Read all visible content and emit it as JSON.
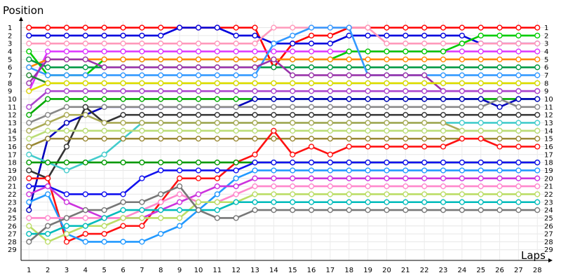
{
  "chart_data": {
    "type": "line",
    "xlabel": "Laps",
    "ylabel": "Position",
    "x": [
      1,
      2,
      3,
      4,
      5,
      6,
      7,
      8,
      9,
      10,
      11,
      12,
      13,
      14,
      15,
      16,
      17,
      18,
      19,
      20,
      21,
      22,
      23,
      24,
      25,
      26,
      27,
      28
    ],
    "xlim": [
      0,
      29
    ],
    "ylim": [
      1,
      29
    ],
    "y_inverted": true,
    "y_ticks": [
      1,
      2,
      3,
      4,
      5,
      6,
      7,
      8,
      9,
      10,
      11,
      12,
      13,
      14,
      15,
      16,
      17,
      18,
      19,
      20,
      21,
      22,
      23,
      24,
      25,
      26,
      27,
      28,
      29
    ],
    "grid": true,
    "legend": "none",
    "series": [
      {
        "color": "#ff0000",
        "values": [
          1,
          1,
          1,
          1,
          1,
          1,
          1,
          1,
          1,
          1,
          1,
          1,
          1,
          6,
          3,
          2,
          2,
          1,
          1,
          1,
          1,
          1,
          1,
          1,
          1,
          1,
          1,
          1
        ]
      },
      {
        "color": "#0000dd",
        "values": [
          2,
          2,
          2,
          2,
          2,
          2,
          2,
          2,
          1,
          1,
          1,
          2,
          2,
          3,
          3,
          3,
          3,
          2,
          2,
          2,
          2,
          2,
          2,
          2,
          3,
          3,
          3,
          3
        ]
      },
      {
        "color": "#ff99bb",
        "values": [
          3,
          3,
          3,
          3,
          3,
          3,
          3,
          3,
          3,
          3,
          3,
          3,
          3,
          1,
          1,
          1,
          1,
          1,
          1,
          3,
          3,
          3,
          3,
          3,
          3,
          3,
          3,
          3
        ]
      },
      {
        "color": "#dd33ff",
        "values": [
          9,
          4,
          4,
          4,
          4,
          4,
          4,
          4,
          4,
          4,
          4,
          4,
          4,
          4,
          4,
          4,
          4,
          4,
          4,
          4,
          4,
          4,
          4,
          4,
          4,
          4,
          4,
          4
        ]
      },
      {
        "color": "#00cc00",
        "values": [
          4,
          7,
          7,
          7,
          5,
          5,
          5,
          5,
          5,
          5,
          5,
          5,
          5,
          5,
          5,
          5,
          5,
          4,
          4,
          4,
          4,
          4,
          4,
          3,
          2,
          2,
          2,
          2
        ]
      },
      {
        "color": "#ff8800",
        "values": [
          6,
          5,
          5,
          5,
          5,
          5,
          5,
          5,
          5,
          5,
          5,
          5,
          5,
          5,
          5,
          5,
          5,
          5,
          5,
          5,
          5,
          5,
          5,
          5,
          5,
          5,
          5,
          5
        ]
      },
      {
        "color": "#009944",
        "values": [
          5,
          6,
          6,
          6,
          6,
          6,
          6,
          6,
          6,
          6,
          6,
          6,
          6,
          6,
          6,
          6,
          6,
          6,
          6,
          6,
          6,
          6,
          6,
          6,
          6,
          6,
          6,
          6
        ]
      },
      {
        "color": "#3399ff",
        "values": [
          6,
          7,
          7,
          7,
          7,
          7,
          7,
          7,
          7,
          7,
          7,
          7,
          7,
          3,
          2,
          1,
          1,
          1,
          7,
          7,
          7,
          7,
          7,
          7,
          7,
          7,
          7,
          7
        ]
      },
      {
        "color": "#9933aa",
        "values": [
          8,
          5,
          5,
          5,
          6,
          6,
          6,
          6,
          6,
          6,
          6,
          6,
          6,
          5,
          7,
          7,
          7,
          7,
          7,
          7,
          7,
          7,
          9,
          9,
          9,
          9,
          9,
          9
        ]
      },
      {
        "color": "#228833",
        "values": [
          7,
          8,
          8,
          8,
          8,
          8,
          8,
          8,
          8,
          8,
          8,
          8,
          8,
          8,
          8,
          8,
          8,
          8,
          8,
          8,
          8,
          8,
          8,
          8,
          8,
          8,
          8,
          8
        ]
      },
      {
        "color": "#dddd00",
        "values": [
          9,
          8,
          8,
          8,
          8,
          8,
          8,
          8,
          8,
          8,
          8,
          8,
          8,
          8,
          8,
          8,
          8,
          8,
          8,
          8,
          8,
          8,
          8,
          8,
          8,
          8,
          8,
          8
        ]
      },
      {
        "color": "#aa44cc",
        "values": [
          11,
          9,
          9,
          9,
          9,
          9,
          9,
          9,
          9,
          9,
          9,
          9,
          9,
          9,
          9,
          9,
          9,
          9,
          9,
          9,
          9,
          9,
          9,
          9,
          9,
          9,
          9,
          9
        ]
      },
      {
        "color": "#00aa00",
        "values": [
          12,
          10,
          10,
          10,
          10,
          10,
          10,
          10,
          10,
          10,
          10,
          10,
          10,
          10,
          10,
          10,
          10,
          10,
          10,
          10,
          10,
          10,
          10,
          10,
          10,
          10,
          10,
          10
        ]
      },
      {
        "color": "#0000bb",
        "values": [
          24,
          15,
          13,
          12,
          11,
          11,
          11,
          11,
          11,
          11,
          11,
          11,
          10,
          10,
          10,
          10,
          10,
          10,
          10,
          10,
          10,
          10,
          10,
          10,
          10,
          11,
          10,
          10
        ]
      },
      {
        "color": "#888888",
        "values": [
          13,
          12,
          11,
          11,
          11,
          11,
          11,
          11,
          11,
          11,
          11,
          11,
          11,
          11,
          11,
          11,
          11,
          11,
          11,
          11,
          11,
          11,
          11,
          11,
          11,
          10,
          11,
          11
        ]
      },
      {
        "color": "#333333",
        "values": [
          19,
          20,
          16,
          11,
          13,
          12,
          12,
          12,
          12,
          12,
          12,
          12,
          12,
          12,
          12,
          12,
          12,
          12,
          12,
          12,
          12,
          12,
          12,
          12,
          12,
          12,
          12,
          12
        ]
      },
      {
        "color": "#44cccc",
        "values": [
          17,
          18,
          19,
          18,
          17,
          15,
          13,
          13,
          13,
          13,
          13,
          13,
          13,
          13,
          13,
          13,
          13,
          13,
          13,
          13,
          13,
          13,
          13,
          13,
          13,
          13,
          13,
          13
        ]
      },
      {
        "color": "#aaaa55",
        "values": [
          14,
          13,
          12,
          12,
          13,
          13,
          13,
          13,
          13,
          13,
          13,
          13,
          13,
          13,
          13,
          13,
          13,
          13,
          13,
          13,
          13,
          13,
          13,
          14,
          14,
          14,
          14,
          14
        ]
      },
      {
        "color": "#bbdd77",
        "values": [
          15,
          14,
          14,
          14,
          14,
          14,
          14,
          14,
          14,
          14,
          14,
          14,
          14,
          14,
          14,
          14,
          14,
          14,
          14,
          14,
          14,
          14,
          14,
          14,
          14,
          14,
          14,
          14
        ]
      },
      {
        "color": "#998833",
        "values": [
          16,
          15,
          15,
          15,
          15,
          15,
          15,
          15,
          15,
          15,
          15,
          15,
          15,
          15,
          15,
          15,
          15,
          15,
          15,
          15,
          15,
          15,
          15,
          15,
          15,
          15,
          15,
          15
        ]
      },
      {
        "color": "#ff1111",
        "values": [
          20,
          20,
          28,
          27,
          27,
          26,
          26,
          23,
          20,
          20,
          20,
          18,
          17,
          14,
          17,
          16,
          17,
          16,
          16,
          16,
          16,
          16,
          16,
          15,
          15,
          16,
          16,
          16
        ]
      },
      {
        "color": "#009900",
        "values": [
          18,
          18,
          18,
          18,
          18,
          18,
          18,
          18,
          18,
          18,
          18,
          18,
          18,
          18,
          18,
          18,
          18,
          18,
          18,
          18,
          18,
          18,
          18,
          18,
          18,
          18,
          18,
          18
        ]
      },
      {
        "color": "#1111ee",
        "values": [
          21,
          21,
          22,
          22,
          22,
          22,
          20,
          19,
          19,
          19,
          19,
          19,
          18,
          18,
          18,
          18,
          18,
          18,
          18,
          18,
          18,
          18,
          18,
          18,
          18,
          18,
          18,
          18
        ]
      },
      {
        "color": "#2299ff",
        "values": [
          23,
          22,
          27,
          28,
          28,
          28,
          28,
          27,
          26,
          24,
          22,
          20,
          19,
          19,
          19,
          19,
          19,
          19,
          19,
          19,
          19,
          19,
          19,
          19,
          19,
          19,
          19,
          19
        ]
      },
      {
        "color": "#cc33dd",
        "values": [
          22,
          21,
          23,
          24,
          25,
          25,
          25,
          24,
          23,
          22,
          21,
          21,
          20,
          20,
          20,
          20,
          20,
          20,
          20,
          20,
          20,
          20,
          20,
          20,
          20,
          20,
          20,
          20
        ]
      },
      {
        "color": "#ff88cc",
        "values": [
          25,
          25,
          25,
          25,
          25,
          25,
          24,
          23,
          22,
          23,
          23,
          22,
          21,
          21,
          21,
          21,
          21,
          21,
          21,
          21,
          21,
          21,
          21,
          21,
          21,
          21,
          21,
          21
        ]
      },
      {
        "color": "#bbdd66",
        "values": [
          26,
          28,
          27,
          26,
          26,
          25,
          25,
          25,
          25,
          23,
          23,
          23,
          22,
          22,
          22,
          22,
          22,
          22,
          22,
          22,
          22,
          22,
          22,
          22,
          22,
          22,
          22,
          22
        ]
      },
      {
        "color": "#00bbbb",
        "values": [
          27,
          27,
          26,
          26,
          25,
          24,
          24,
          24,
          24,
          24,
          24,
          23,
          23,
          23,
          23,
          23,
          23,
          23,
          23,
          23,
          23,
          23,
          23,
          23,
          23,
          23,
          23,
          23
        ]
      },
      {
        "color": "#777777",
        "values": [
          28,
          26,
          25,
          24,
          24,
          23,
          23,
          22,
          21,
          24,
          25,
          25,
          24,
          24,
          24,
          24,
          24,
          24,
          24,
          24,
          24,
          24,
          24,
          24,
          24,
          24,
          24,
          24
        ]
      }
    ]
  }
}
